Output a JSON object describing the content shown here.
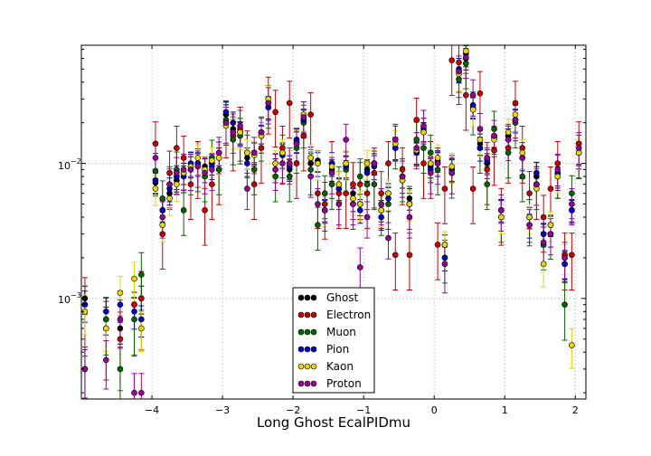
{
  "chart_data": {
    "type": "scatter",
    "title": "",
    "xlabel": "Long Ghost EcalPIDmu",
    "ylabel": "",
    "yscale": "log",
    "xlim": [
      -5,
      2.15
    ],
    "ylim": [
      0.00018,
      0.075
    ],
    "x_ticks": [
      -4,
      -3,
      -2,
      -1,
      0,
      1,
      2
    ],
    "x_tick_labels": [
      "−4",
      "−3",
      "−2",
      "−1",
      "0",
      "1",
      "2"
    ],
    "y_tick_labels": [
      "10",
      "10"
    ],
    "y_tick_exponents": [
      "−3",
      "−2"
    ],
    "grid": true,
    "legend_position": "lower-center",
    "legend": [
      "Ghost",
      "Electron",
      "Muon",
      "Pion",
      "Kaon",
      "Proton"
    ],
    "colors": {
      "Ghost": "#000000",
      "Electron": "#cc0000",
      "Muon": "#006600",
      "Pion": "#0000cc",
      "Kaon": "#e6d800",
      "Proton": "#990099"
    },
    "x": [
      -4.95,
      -4.65,
      -4.45,
      -4.25,
      -4.15,
      -3.95,
      -3.85,
      -3.75,
      -3.65,
      -3.55,
      -3.45,
      -3.35,
      -3.25,
      -3.15,
      -3.05,
      -2.95,
      -2.85,
      -2.75,
      -2.65,
      -2.55,
      -2.45,
      -2.35,
      -2.25,
      -2.15,
      -2.05,
      -1.95,
      -1.85,
      -1.75,
      -1.65,
      -1.55,
      -1.45,
      -1.35,
      -1.25,
      -1.15,
      -1.05,
      -0.95,
      -0.85,
      -0.75,
      -0.65,
      -0.55,
      -0.45,
      -0.35,
      -0.25,
      -0.15,
      -0.05,
      0.05,
      0.15,
      0.25,
      0.35,
      0.45,
      0.55,
      0.65,
      0.75,
      0.85,
      0.95,
      1.05,
      1.15,
      1.25,
      1.35,
      1.45,
      1.55,
      1.65,
      1.75,
      1.85,
      1.95,
      2.05
    ],
    "series": [
      {
        "name": "Ghost",
        "values": [
          0.001,
          0.0007,
          0.0006,
          0.0009,
          0.001,
          0.0072,
          0.0045,
          0.006,
          0.0075,
          0.0085,
          0.0095,
          0.01,
          0.0095,
          0.01,
          0.011,
          0.023,
          0.018,
          0.017,
          0.011,
          0.012,
          0.017,
          0.026,
          0.01,
          0.012,
          0.009,
          0.0145,
          0.021,
          0.01,
          0.0105,
          0.0045,
          0.009,
          0.0065,
          0.0095,
          0.006,
          0.005,
          0.009,
          0.01,
          0.0045,
          0.006,
          0.013,
          0.008,
          0.0055,
          0.012,
          0.017,
          0.0095,
          0.0105,
          0.0025,
          0.009,
          0.048,
          0.06,
          0.026,
          0.014,
          0.01,
          0.016,
          0.0045,
          0.016,
          0.021,
          0.011,
          0.004,
          0.008,
          0.003,
          0.0035,
          0.008,
          0.0018,
          0.0045,
          0.012
        ]
      },
      {
        "name": "Electron",
        "values": [
          0.0009,
          0.0006,
          0.0005,
          0.0009,
          0.001,
          0.014,
          0.003,
          0.0085,
          0.013,
          0.011,
          0.007,
          0.01,
          0.0045,
          0.007,
          0.009,
          0.02,
          0.016,
          0.018,
          0.012,
          0.007,
          0.013,
          0.03,
          0.024,
          0.013,
          0.028,
          0.01,
          0.016,
          0.023,
          0.006,
          0.005,
          0.01,
          0.006,
          0.006,
          0.007,
          0.007,
          0.006,
          0.0085,
          0.006,
          0.01,
          0.0021,
          0.009,
          0.0021,
          0.021,
          0.01,
          0.01,
          0.0025,
          0.0065,
          0.058,
          0.056,
          0.032,
          0.0065,
          0.033,
          0.009,
          0.0125,
          0.0045,
          0.013,
          0.028,
          0.013,
          0.006,
          0.007,
          0.004,
          0.0065,
          0.01,
          0.0021,
          0.0021,
          0.014
        ]
      },
      {
        "name": "Muon",
        "values": [
          0.0003,
          0.0007,
          0.0003,
          0.0007,
          0.0015,
          0.0088,
          0.0055,
          0.007,
          0.009,
          0.0045,
          0.009,
          0.0095,
          0.008,
          0.011,
          0.009,
          0.021,
          0.015,
          0.016,
          0.012,
          0.009,
          0.016,
          0.028,
          0.008,
          0.012,
          0.008,
          0.013,
          0.02,
          0.009,
          0.0035,
          0.006,
          0.007,
          0.007,
          0.009,
          0.005,
          0.008,
          0.007,
          0.007,
          0.0045,
          0.005,
          0.014,
          0.008,
          0.005,
          0.015,
          0.013,
          0.012,
          0.009,
          0.002,
          0.0085,
          0.042,
          0.055,
          0.025,
          0.013,
          0.007,
          0.018,
          0.004,
          0.012,
          0.02,
          0.008,
          0.004,
          0.007,
          0.0025,
          0.003,
          0.0085,
          0.0009,
          0.006,
          0.012
        ]
      },
      {
        "name": "Pion",
        "values": [
          0.0009,
          0.0008,
          0.0009,
          0.0008,
          0.0007,
          0.0075,
          0.0045,
          0.0065,
          0.008,
          0.008,
          0.01,
          0.01,
          0.009,
          0.0095,
          0.012,
          0.024,
          0.02,
          0.017,
          0.01,
          0.012,
          0.016,
          0.026,
          0.009,
          0.0115,
          0.0095,
          0.015,
          0.021,
          0.011,
          0.01,
          0.0045,
          0.01,
          0.0065,
          0.0095,
          0.0055,
          0.0045,
          0.0085,
          0.0095,
          0.004,
          0.0055,
          0.013,
          0.0075,
          0.005,
          0.012,
          0.018,
          0.009,
          0.01,
          0.002,
          0.009,
          0.05,
          0.065,
          0.027,
          0.013,
          0.0105,
          0.0155,
          0.0045,
          0.015,
          0.021,
          0.011,
          0.0035,
          0.0085,
          0.003,
          0.003,
          0.0085,
          0.0018,
          0.0045,
          0.012
        ]
      },
      {
        "name": "Kaon",
        "values": [
          0.0008,
          0.0006,
          0.0011,
          0.0014,
          0.0006,
          0.0065,
          0.0035,
          0.0055,
          0.007,
          0.0085,
          0.0095,
          0.011,
          0.009,
          0.0105,
          0.011,
          0.019,
          0.017,
          0.017,
          0.012,
          0.0115,
          0.016,
          0.03,
          0.01,
          0.012,
          0.01,
          0.014,
          0.023,
          0.011,
          0.01,
          0.0045,
          0.0095,
          0.007,
          0.01,
          0.0055,
          0.005,
          0.01,
          0.01,
          0.0045,
          0.006,
          0.014,
          0.0075,
          0.005,
          0.0125,
          0.017,
          0.01,
          0.011,
          0.0025,
          0.0095,
          0.046,
          0.068,
          0.025,
          0.015,
          0.011,
          0.015,
          0.004,
          0.017,
          0.023,
          0.012,
          0.004,
          0.0065,
          0.0018,
          0.0035,
          0.008,
          0.002,
          0.00045,
          0.012
        ]
      },
      {
        "name": "Proton",
        "values": [
          0.0003,
          0.00035,
          0.0007,
          0.0002,
          0.0002,
          0.011,
          0.004,
          0.007,
          0.0085,
          0.009,
          0.009,
          0.0095,
          0.0085,
          0.009,
          0.012,
          0.02,
          0.017,
          0.019,
          0.0065,
          0.012,
          0.017,
          0.028,
          0.009,
          0.01,
          0.01,
          0.014,
          0.022,
          0.008,
          0.005,
          0.0045,
          0.0085,
          0.005,
          0.015,
          0.005,
          0.0017,
          0.004,
          0.01,
          0.005,
          0.0028,
          0.015,
          0.008,
          0.004,
          0.013,
          0.019,
          0.0085,
          0.01,
          0.0018,
          0.0085,
          0.048,
          0.061,
          0.032,
          0.018,
          0.011,
          0.016,
          0.0045,
          0.015,
          0.021,
          0.011,
          0.0035,
          0.007,
          0.0026,
          0.003,
          0.009,
          0.002,
          0.005,
          0.013
        ]
      }
    ]
  }
}
